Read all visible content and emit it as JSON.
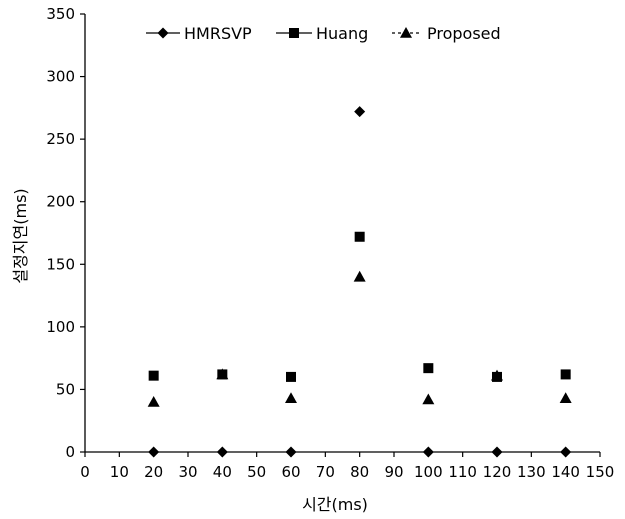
{
  "chart_data": {
    "type": "scatter",
    "title": "",
    "xlabel": "시간(ms)",
    "ylabel": "설정지연(ms)",
    "xlim": [
      0,
      150
    ],
    "ylim": [
      0,
      350
    ],
    "xticks": [
      0,
      10,
      20,
      30,
      40,
      50,
      60,
      70,
      80,
      90,
      100,
      110,
      120,
      130,
      140,
      150
    ],
    "yticks": [
      0,
      50,
      100,
      150,
      200,
      250,
      300,
      350
    ],
    "grid": false,
    "legend_position": "top",
    "series": [
      {
        "name": "HMRSVP",
        "marker": "diamond",
        "legend_style": "line-marker",
        "color": "#000000",
        "x": [
          20,
          40,
          60,
          80,
          100,
          120,
          140
        ],
        "y": [
          0,
          0,
          0,
          272,
          0,
          0,
          0
        ]
      },
      {
        "name": "Huang",
        "marker": "square",
        "legend_style": "line-marker",
        "color": "#000000",
        "x": [
          20,
          40,
          60,
          80,
          100,
          120,
          140
        ],
        "y": [
          61,
          62,
          60,
          172,
          67,
          60,
          62
        ]
      },
      {
        "name": "Proposed",
        "marker": "triangle",
        "legend_style": "dashed-marker",
        "color": "#000000",
        "x": [
          20,
          40,
          60,
          80,
          100,
          120,
          140
        ],
        "y": [
          40,
          62,
          43,
          140,
          42,
          61,
          43
        ]
      }
    ]
  }
}
